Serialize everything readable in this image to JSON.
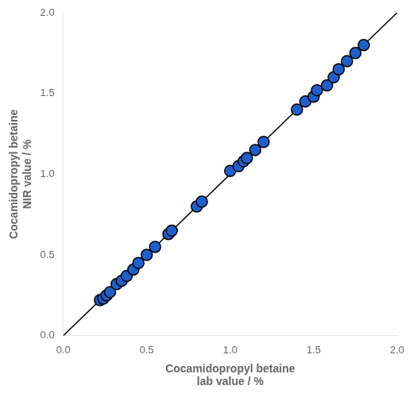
{
  "chart_data": {
    "type": "scatter",
    "xlabel": "Cocamidopropyl betaine\nlab value / %",
    "ylabel": "Cocamidopropyl betaine\nNIR value / %",
    "series": [
      {
        "type": "line",
        "x": [
          0.0,
          2.0
        ],
        "values": [
          0.0,
          2.0
        ],
        "color": "#000000",
        "line_style": "solid"
      },
      {
        "type": "scatter",
        "x": [
          0.22,
          0.24,
          0.26,
          0.28,
          0.32,
          0.35,
          0.38,
          0.42,
          0.45,
          0.5,
          0.55,
          0.63,
          0.65,
          0.8,
          0.83,
          1.0,
          1.05,
          1.08,
          1.1,
          1.15,
          1.2,
          1.4,
          1.45,
          1.5,
          1.52,
          1.58,
          1.62,
          1.65,
          1.7,
          1.75,
          1.8
        ],
        "values": [
          0.22,
          0.23,
          0.25,
          0.27,
          0.32,
          0.34,
          0.37,
          0.41,
          0.45,
          0.5,
          0.55,
          0.63,
          0.65,
          0.8,
          0.83,
          1.02,
          1.05,
          1.08,
          1.1,
          1.15,
          1.2,
          1.4,
          1.45,
          1.48,
          1.52,
          1.55,
          1.6,
          1.65,
          1.7,
          1.75,
          1.8
        ],
        "color": "#1f5fcc",
        "marker": "circle"
      }
    ],
    "xlim": [
      0.0,
      2.0
    ],
    "ylim": [
      0.0,
      2.0
    ],
    "xticks": [
      {
        "value": 0.0,
        "label": "0.0"
      },
      0.5,
      {
        "value": 1.0,
        "label": "1.0"
      },
      1.5,
      {
        "value": 2.0,
        "label": "2.0"
      }
    ],
    "yticks": [
      {
        "value": 0.0,
        "label": "0.0"
      },
      0.5,
      {
        "value": 1.0,
        "label": "1.0"
      },
      1.5,
      {
        "value": 2.0,
        "label": "2.0"
      }
    ],
    "grid": false
  }
}
